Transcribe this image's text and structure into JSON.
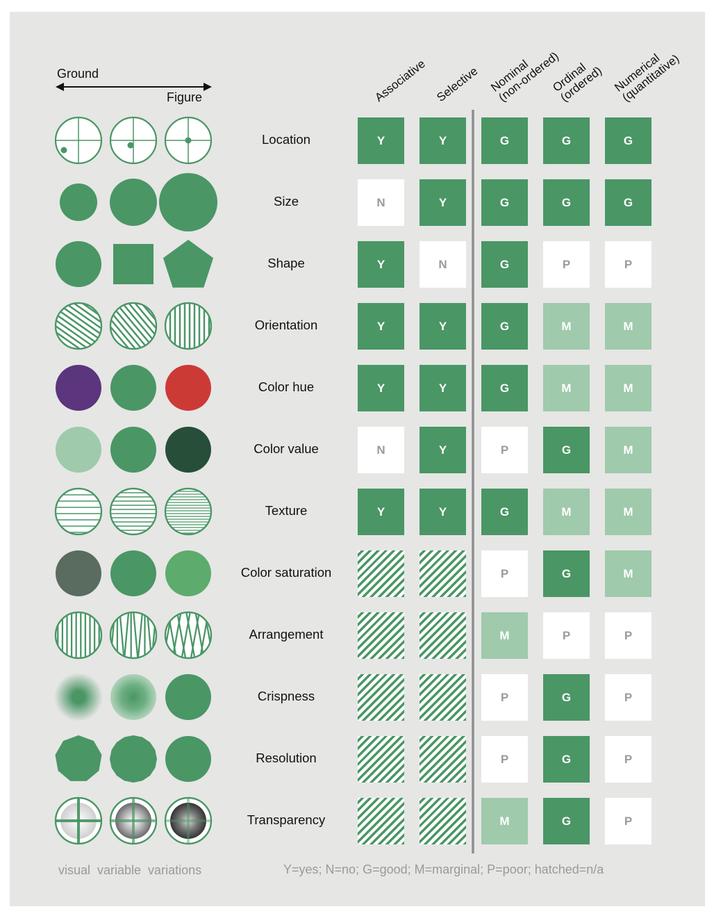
{
  "colors": {
    "panel": "#e6e6e5",
    "green": "#4a9665",
    "light_green": "#9fcaab",
    "white": "#ffffff",
    "purple": "#5b357d",
    "red": "#cc3a35",
    "dark_green": "#274e38",
    "gray_green": "#5a6b60",
    "bright_green": "#5dab6d",
    "divider": "#8e8e8e"
  },
  "axis": {
    "ground_label": "Ground",
    "figure_label": "Figure"
  },
  "columns": [
    {
      "label": "Associative"
    },
    {
      "label": "Selective"
    },
    {
      "label": "Nominal\n(non-ordered)"
    },
    {
      "label": "Ordinal\n(ordered)"
    },
    {
      "label": "Numerical\n(quantitative)"
    }
  ],
  "rows": [
    {
      "label": "Location",
      "icon_kind": "location",
      "ratings": [
        "Y",
        "Y",
        "G",
        "G",
        "G"
      ]
    },
    {
      "label": "Size",
      "icon_kind": "size",
      "ratings": [
        "N",
        "Y",
        "G",
        "G",
        "G"
      ]
    },
    {
      "label": "Shape",
      "icon_kind": "shape",
      "ratings": [
        "Y",
        "N",
        "G",
        "P",
        "P"
      ]
    },
    {
      "label": "Orientation",
      "icon_kind": "orientation",
      "ratings": [
        "Y",
        "Y",
        "G",
        "M",
        "M"
      ]
    },
    {
      "label": "Color hue",
      "icon_kind": "hue",
      "ratings": [
        "Y",
        "Y",
        "G",
        "M",
        "M"
      ]
    },
    {
      "label": "Color value",
      "icon_kind": "value",
      "ratings": [
        "N",
        "Y",
        "P",
        "G",
        "M"
      ]
    },
    {
      "label": "Texture",
      "icon_kind": "texture",
      "ratings": [
        "Y",
        "Y",
        "G",
        "M",
        "M"
      ]
    },
    {
      "label": "Color saturation",
      "icon_kind": "saturation",
      "ratings": [
        "H",
        "H",
        "P",
        "G",
        "M"
      ]
    },
    {
      "label": "Arrangement",
      "icon_kind": "arrangement",
      "ratings": [
        "H",
        "H",
        "M",
        "P",
        "P"
      ]
    },
    {
      "label": "Crispness",
      "icon_kind": "crispness",
      "ratings": [
        "H",
        "H",
        "P",
        "G",
        "P"
      ]
    },
    {
      "label": "Resolution",
      "icon_kind": "resolution",
      "ratings": [
        "H",
        "H",
        "P",
        "G",
        "P"
      ]
    },
    {
      "label": "Transparency",
      "icon_kind": "transparency",
      "ratings": [
        "H",
        "H",
        "M",
        "G",
        "P"
      ]
    }
  ],
  "footer": {
    "caption_left": "visual  variable  variations",
    "legend": "Y=yes; N=no; G=good; M=marginal; P=poor; hatched=n/a"
  }
}
